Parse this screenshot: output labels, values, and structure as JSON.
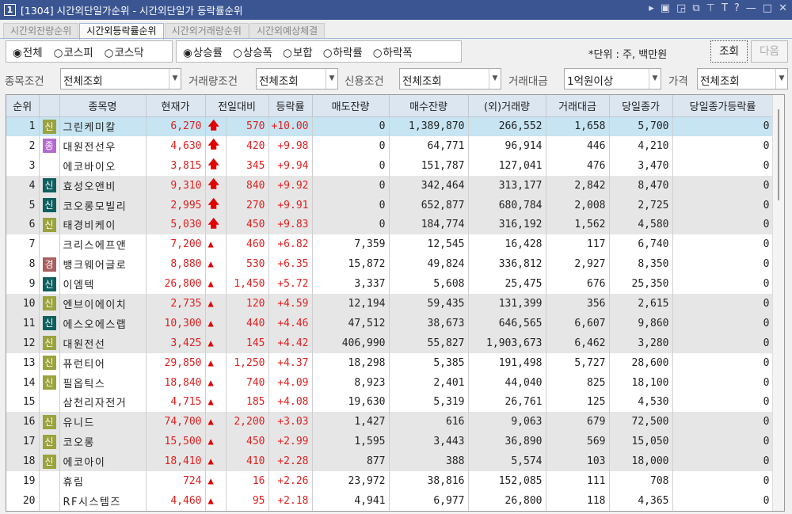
{
  "window": {
    "id": "1",
    "title": "[1304] 시간외단일가순위 - 시간외단일가 등락률순위"
  },
  "tabs": [
    {
      "label": "시간외잔량순위"
    },
    {
      "label": "시간외등락률순위",
      "active": true
    },
    {
      "label": "시간외거래량순위"
    },
    {
      "label": "시간외예상체결"
    }
  ],
  "market_radios": [
    {
      "label": "전체",
      "checked": true
    },
    {
      "label": "코스피"
    },
    {
      "label": "코스닥"
    }
  ],
  "sort_radios": [
    {
      "label": "상승률",
      "checked": true
    },
    {
      "label": "상승폭"
    },
    {
      "label": "보합"
    },
    {
      "label": "하락률"
    },
    {
      "label": "하락폭"
    }
  ],
  "unit_text": "*단위 : 주, 백만원",
  "buttons": {
    "query": "조회",
    "next": "다음"
  },
  "filters": {
    "stock_label": "종목조건",
    "stock_value": "전체조회",
    "volume_label": "거래량조건",
    "volume_value": "전체조회",
    "credit_label": "신용조건",
    "credit_value": "전체조회",
    "amount_label": "거래대금",
    "amount_value": "1억원이상",
    "price_label": "가격",
    "price_value": "전체조회"
  },
  "columns": [
    "순위",
    "",
    "종목명",
    "현재가",
    "전일대비",
    "등락률",
    "매도잔량",
    "매수잔량",
    "(외)거래량",
    "거래대금",
    "당일종가",
    "당일종가등락률"
  ],
  "badge_colors": {
    "신_olive": "#9aa33c",
    "신_teal": "#0f5f5f",
    "종": "#b36ad0",
    "경": "#a86060"
  },
  "rows": [
    [
      "1",
      "신o",
      "그린케미칼",
      "6,270",
      "up-limit",
      "570",
      "+10.00",
      "0",
      "1,389,870",
      "266,552",
      "1,658",
      "5,700",
      "0"
    ],
    [
      "2",
      "종",
      "대원전선우",
      "4,630",
      "up-limit",
      "420",
      "+9.98",
      "0",
      "64,771",
      "96,914",
      "446",
      "4,210",
      "0"
    ],
    [
      "3",
      "",
      "에코바이오",
      "3,815",
      "up-limit",
      "345",
      "+9.94",
      "0",
      "151,787",
      "127,041",
      "476",
      "3,470",
      "0"
    ],
    [
      "4",
      "신t",
      "효성오앤비",
      "9,310",
      "up-limit",
      "840",
      "+9.92",
      "0",
      "342,464",
      "313,177",
      "2,842",
      "8,470",
      "0"
    ],
    [
      "5",
      "신t",
      "코오롱모빌리",
      "2,995",
      "up-limit",
      "270",
      "+9.91",
      "0",
      "652,877",
      "680,784",
      "2,008",
      "2,725",
      "0"
    ],
    [
      "6",
      "신o",
      "태경비케이",
      "5,030",
      "up-limit",
      "450",
      "+9.83",
      "0",
      "184,774",
      "316,192",
      "1,562",
      "4,580",
      "0"
    ],
    [
      "7",
      "",
      "크리스에프앤",
      "7,200",
      "up",
      "460",
      "+6.82",
      "7,359",
      "12,545",
      "16,428",
      "117",
      "6,740",
      "0"
    ],
    [
      "8",
      "경",
      "뱅크웨어글로",
      "8,880",
      "up",
      "530",
      "+6.35",
      "15,872",
      "49,824",
      "336,812",
      "2,927",
      "8,350",
      "0"
    ],
    [
      "9",
      "신t",
      "이엠텍",
      "26,800",
      "up",
      "1,450",
      "+5.72",
      "3,337",
      "5,608",
      "25,475",
      "676",
      "25,350",
      "0"
    ],
    [
      "10",
      "신o",
      "엔브이에이치",
      "2,735",
      "up",
      "120",
      "+4.59",
      "12,194",
      "59,435",
      "131,399",
      "356",
      "2,615",
      "0"
    ],
    [
      "11",
      "신t",
      "에스오에스랩",
      "10,300",
      "up",
      "440",
      "+4.46",
      "47,512",
      "38,673",
      "646,565",
      "6,607",
      "9,860",
      "0"
    ],
    [
      "12",
      "신o",
      "대원전선",
      "3,425",
      "up",
      "145",
      "+4.42",
      "406,990",
      "55,827",
      "1,903,673",
      "6,462",
      "3,280",
      "0"
    ],
    [
      "13",
      "신o",
      "퓨런티어",
      "29,850",
      "up",
      "1,250",
      "+4.37",
      "18,298",
      "5,385",
      "191,498",
      "5,727",
      "28,600",
      "0"
    ],
    [
      "14",
      "신o",
      "필옵틱스",
      "18,840",
      "up",
      "740",
      "+4.09",
      "8,923",
      "2,401",
      "44,040",
      "825",
      "18,100",
      "0"
    ],
    [
      "15",
      "",
      "삼천리자전거",
      "4,715",
      "up",
      "185",
      "+4.08",
      "19,630",
      "5,319",
      "26,761",
      "125",
      "4,530",
      "0"
    ],
    [
      "16",
      "신o",
      "유니드",
      "74,700",
      "up",
      "2,200",
      "+3.03",
      "1,427",
      "616",
      "9,063",
      "679",
      "72,500",
      "0"
    ],
    [
      "17",
      "신o",
      "코오롱",
      "15,500",
      "up",
      "450",
      "+2.99",
      "1,595",
      "3,443",
      "36,890",
      "569",
      "15,050",
      "0"
    ],
    [
      "18",
      "신o",
      "에코아이",
      "18,410",
      "up",
      "410",
      "+2.28",
      "877",
      "388",
      "5,574",
      "103",
      "18,000",
      "0"
    ],
    [
      "19",
      "",
      "휴림",
      "724",
      "up",
      "16",
      "+2.26",
      "23,972",
      "38,816",
      "152,085",
      "111",
      "708",
      "0"
    ],
    [
      "20",
      "",
      "RF시스템즈",
      "4,460",
      "up",
      "95",
      "+2.18",
      "4,941",
      "6,977",
      "26,800",
      "118",
      "4,365",
      "0"
    ]
  ]
}
